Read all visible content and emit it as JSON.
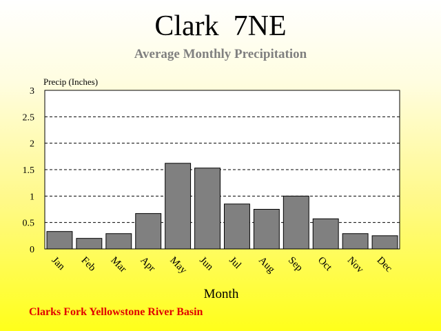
{
  "title": "Clark  7NE",
  "subtitle": "Average Monthly Precipitation",
  "footer": "Clarks Fork Yellowstone River Basin",
  "colors": {
    "bar_fill": "#808080",
    "footer_text": "#e00000",
    "subtitle_text": "#808080"
  },
  "chart_data": {
    "type": "bar",
    "categories": [
      "Jan",
      "Feb",
      "Mar",
      "Apr",
      "May",
      "Jun",
      "Jul",
      "Aug",
      "Sep",
      "Oct",
      "Nov",
      "Dec"
    ],
    "values": [
      0.33,
      0.2,
      0.29,
      0.67,
      1.62,
      1.53,
      0.85,
      0.75,
      1.0,
      0.57,
      0.29,
      0.25
    ],
    "xlabel": "Month",
    "ylabel": "Precip (Inches)",
    "ylim": [
      0,
      3
    ],
    "yticks": [
      "0",
      "0.5",
      "1",
      "1.5",
      "2",
      "2.5",
      "3"
    ],
    "grid": true
  }
}
